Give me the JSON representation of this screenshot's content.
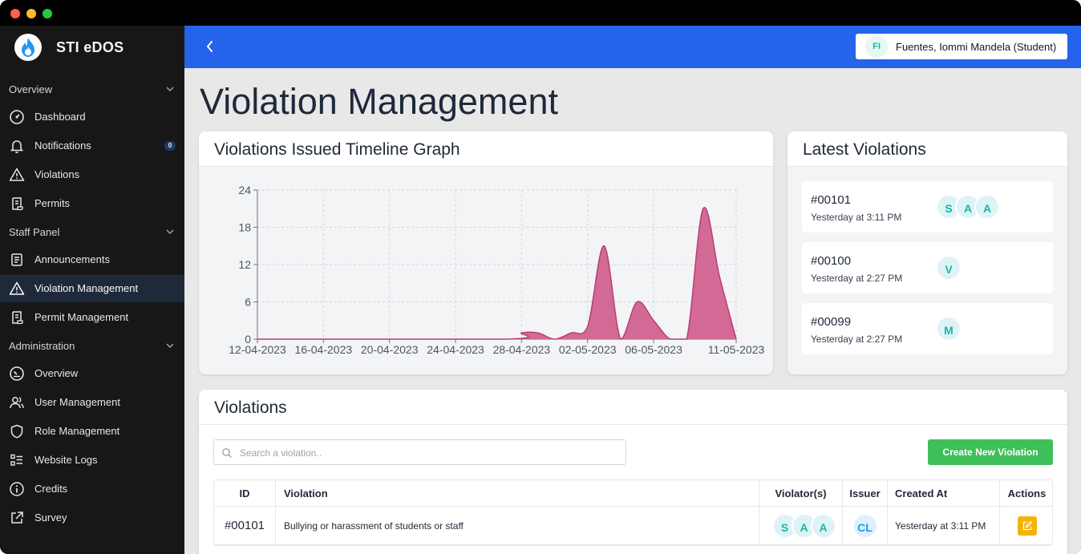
{
  "app": {
    "name": "STI eDOS"
  },
  "sidebar": {
    "sections": [
      {
        "title": "Overview",
        "items": [
          {
            "label": "Dashboard",
            "icon": "gauge-icon"
          },
          {
            "label": "Notifications",
            "icon": "bell-icon",
            "badge": "0"
          },
          {
            "label": "Violations",
            "icon": "warning-icon"
          },
          {
            "label": "Permits",
            "icon": "scroll-icon"
          }
        ]
      },
      {
        "title": "Staff Panel",
        "items": [
          {
            "label": "Announcements",
            "icon": "document-icon"
          },
          {
            "label": "Violation Management",
            "icon": "warning-icon",
            "active": true
          },
          {
            "label": "Permit Management",
            "icon": "scroll-icon"
          }
        ]
      },
      {
        "title": "Administration",
        "items": [
          {
            "label": "Overview",
            "icon": "speedometer-icon"
          },
          {
            "label": "User Management",
            "icon": "users-icon"
          },
          {
            "label": "Role Management",
            "icon": "shield-icon"
          },
          {
            "label": "Website Logs",
            "icon": "list-icon"
          },
          {
            "label": "Credits",
            "icon": "info-icon"
          },
          {
            "label": "Survey",
            "icon": "external-link-icon"
          }
        ]
      }
    ]
  },
  "topbar": {
    "user_initials": "FI",
    "user_name": "Fuentes, Iommi Mandela (Student)"
  },
  "page": {
    "title": "Violation Management"
  },
  "timeline": {
    "title": "Violations Issued Timeline Graph"
  },
  "chart_data": {
    "type": "area",
    "title": "Violations Issued Timeline Graph",
    "xlabel": "",
    "ylabel": "",
    "ylim": [
      0,
      24
    ],
    "yticks": [
      0,
      6,
      12,
      18,
      24
    ],
    "x_tick_labels": [
      "12-04-2023",
      "16-04-2023",
      "20-04-2023",
      "24-04-2023",
      "28-04-2023",
      "02-05-2023",
      "06-05-2023",
      "11-05-2023"
    ],
    "x_start": "12-04-2023",
    "x_end": "11-05-2023",
    "grid": true,
    "color": "#d1628f",
    "series": [
      {
        "x": [
          "12-04-2023",
          "27-04-2023",
          "28-04-2023",
          "29-04-2023",
          "30-04-2023",
          "01-05-2023",
          "02-05-2023",
          "03-05-2023",
          "04-05-2023",
          "05-05-2023",
          "06-05-2023",
          "07-05-2023",
          "08-05-2023",
          "09-05-2023",
          "10-05-2023",
          "11-05-2023"
        ],
        "values": [
          0,
          0,
          1,
          1,
          0,
          1,
          2,
          15,
          0,
          6,
          3,
          0,
          0,
          21,
          10,
          0
        ]
      }
    ]
  },
  "latest": {
    "title": "Latest Violations",
    "items": [
      {
        "id": "#00101",
        "time": "Yesterday at 3:11 PM",
        "violators": [
          "S",
          "A",
          "A"
        ]
      },
      {
        "id": "#00100",
        "time": "Yesterday at 2:27 PM",
        "violators": [
          "V"
        ]
      },
      {
        "id": "#00099",
        "time": "Yesterday at 2:27 PM",
        "violators": [
          "M"
        ]
      }
    ]
  },
  "violations": {
    "title": "Violations",
    "search_placeholder": "Search a violation..",
    "search_value": "",
    "create_label": "Create New Violation",
    "columns": [
      "ID",
      "Violation",
      "Violator(s)",
      "Issuer",
      "Created At",
      "Actions"
    ],
    "rows": [
      {
        "id": "#00101",
        "violation": "Bullying or harassment of students or staff",
        "violators": [
          "S",
          "A",
          "A"
        ],
        "issuer": "CL",
        "created_at": "Yesterday at 3:11 PM"
      }
    ]
  },
  "colors": {
    "sidebar_bg": "#171717",
    "topbar_bg": "#2563eb",
    "accent_green": "#3fbf5a",
    "edit_yellow": "#f5b301",
    "avatar_teal": "#14b8a6"
  }
}
